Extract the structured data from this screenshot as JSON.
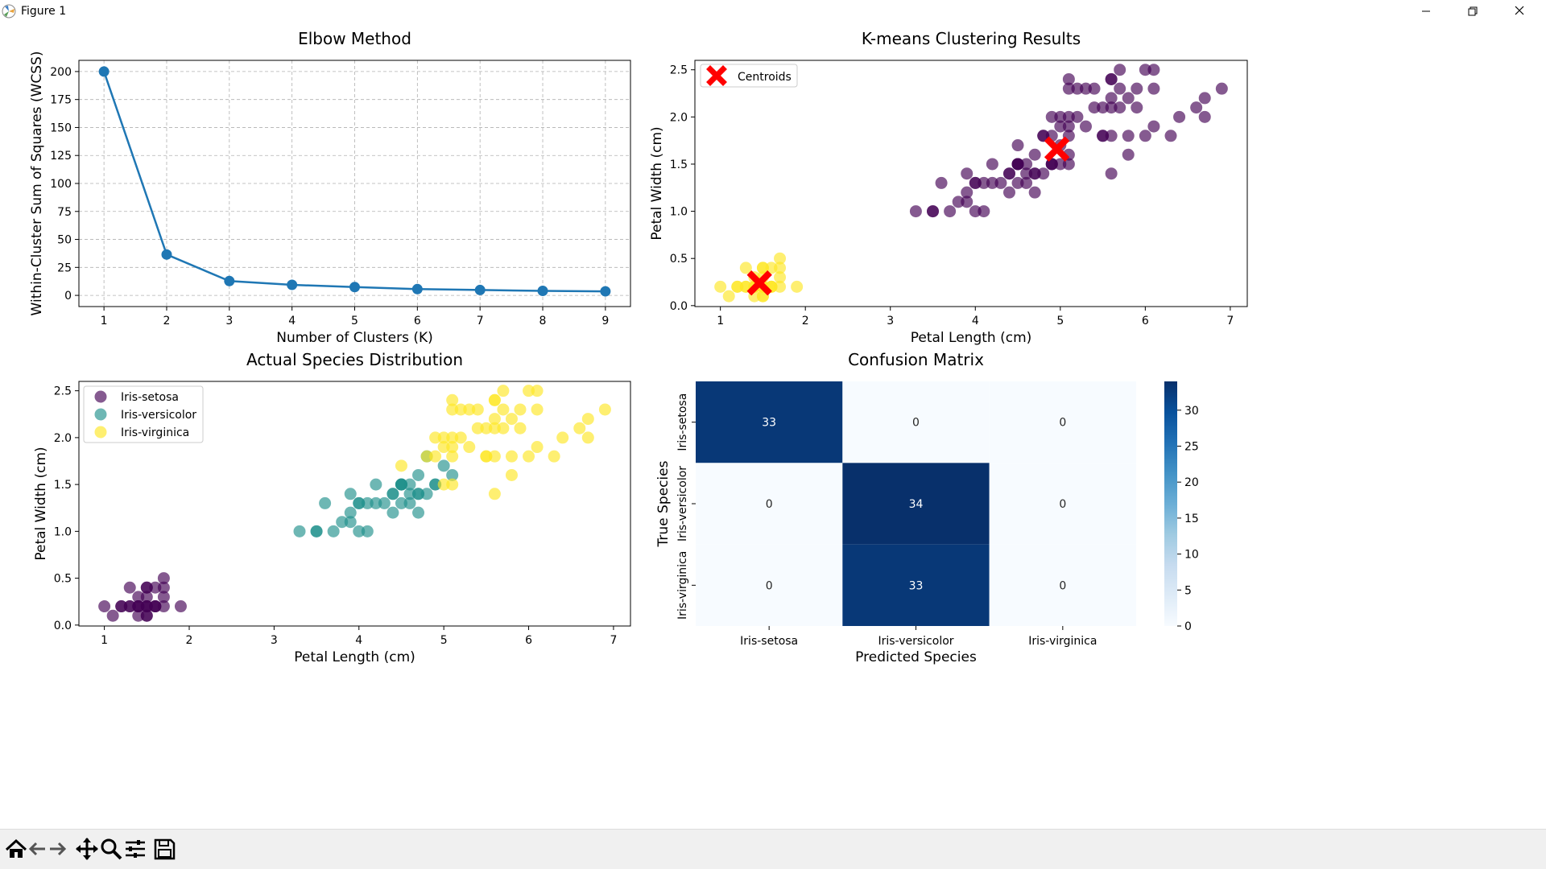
{
  "window": {
    "title": "Figure 1",
    "buttons": [
      "minimize",
      "restore",
      "close"
    ]
  },
  "toolbar": {
    "icons": [
      "home-icon",
      "back-arrow-icon",
      "forward-arrow-icon",
      "pan-icon",
      "zoom-icon",
      "configure-subplots-icon",
      "save-icon"
    ]
  },
  "colors": {
    "line_blue": "#1f77b4",
    "viridis_purple": "#440154",
    "viridis_teal": "#21918c",
    "viridis_yellow": "#fde725",
    "centroid_red": "#ff0000",
    "heat_dark": "#08306b",
    "heat_light": "#f7fbff"
  },
  "chart_data": [
    {
      "type": "line",
      "title": "Elbow Method",
      "xlabel": "Number of Clusters (K)",
      "ylabel": "Within-Cluster Sum of Squares (WCSS)",
      "x": [
        1,
        2,
        3,
        4,
        5,
        6,
        7,
        8,
        9
      ],
      "y": [
        200,
        36.5,
        12.8,
        9.4,
        7.4,
        5.6,
        4.8,
        4.0,
        3.6
      ],
      "xticks": [
        "1",
        "2",
        "3",
        "4",
        "5",
        "6",
        "7",
        "8",
        "9"
      ],
      "yticks": [
        "0",
        "25",
        "50",
        "75",
        "100",
        "125",
        "150",
        "175",
        "200"
      ],
      "xlim": [
        0.6,
        9.4
      ],
      "ylim": [
        -10,
        210
      ],
      "grid": true,
      "color": "#1f77b4"
    },
    {
      "type": "scatter",
      "title": "K-means Clustering Results",
      "xlabel": "Petal Length (cm)",
      "ylabel": "Petal Width (cm)",
      "xticks": [
        "1",
        "2",
        "3",
        "4",
        "5",
        "6",
        "7"
      ],
      "yticks": [
        "0.0",
        "0.5",
        "1.0",
        "1.5",
        "2.0",
        "2.5"
      ],
      "xlim": [
        0.7,
        7.2
      ],
      "ylim": [
        -0.01,
        2.6
      ],
      "legend": {
        "position": "top-left",
        "entries": [
          "Centroids"
        ]
      },
      "clusters": [
        {
          "color": "#fde725",
          "points": [
            [
              1.4,
              0.2
            ],
            [
              1.3,
              0.2
            ],
            [
              1.5,
              0.2
            ],
            [
              1.4,
              0.2
            ],
            [
              1.7,
              0.4
            ],
            [
              1.4,
              0.3
            ],
            [
              1.5,
              0.2
            ],
            [
              1.5,
              0.1
            ],
            [
              1.5,
              0.2
            ],
            [
              1.6,
              0.2
            ],
            [
              1.4,
              0.1
            ],
            [
              1.1,
              0.1
            ],
            [
              1.2,
              0.2
            ],
            [
              1.5,
              0.4
            ],
            [
              1.3,
              0.4
            ],
            [
              1.7,
              0.3
            ],
            [
              1.5,
              0.3
            ],
            [
              1.7,
              0.2
            ],
            [
              1.5,
              0.4
            ],
            [
              1.0,
              0.2
            ],
            [
              1.7,
              0.5
            ],
            [
              1.9,
              0.2
            ],
            [
              1.6,
              0.2
            ],
            [
              1.6,
              0.4
            ],
            [
              1.4,
              0.2
            ],
            [
              1.6,
              0.2
            ],
            [
              1.5,
              0.1
            ],
            [
              1.3,
              0.2
            ],
            [
              1.2,
              0.2
            ]
          ]
        },
        {
          "color": "#440154",
          "points": [
            [
              4.7,
              1.4
            ],
            [
              4.5,
              1.5
            ],
            [
              4.9,
              1.5
            ],
            [
              4.0,
              1.3
            ],
            [
              4.6,
              1.5
            ],
            [
              4.5,
              1.3
            ],
            [
              4.7,
              1.6
            ],
            [
              3.3,
              1.0
            ],
            [
              4.6,
              1.3
            ],
            [
              3.9,
              1.4
            ],
            [
              3.5,
              1.0
            ],
            [
              4.2,
              1.5
            ],
            [
              4.0,
              1.0
            ],
            [
              4.7,
              1.4
            ],
            [
              3.6,
              1.3
            ],
            [
              4.4,
              1.4
            ],
            [
              4.1,
              1.0
            ],
            [
              4.5,
              1.5
            ],
            [
              3.9,
              1.1
            ],
            [
              4.8,
              1.8
            ],
            [
              4.0,
              1.3
            ],
            [
              4.9,
              1.5
            ],
            [
              4.7,
              1.2
            ],
            [
              4.3,
              1.3
            ],
            [
              4.4,
              1.4
            ],
            [
              4.8,
              1.4
            ],
            [
              5.0,
              1.7
            ],
            [
              4.5,
              1.5
            ],
            [
              3.5,
              1.0
            ],
            [
              3.8,
              1.1
            ],
            [
              3.7,
              1.0
            ],
            [
              3.9,
              1.2
            ],
            [
              5.1,
              1.6
            ],
            [
              4.5,
              1.5
            ],
            [
              6.0,
              2.5
            ],
            [
              5.1,
              1.9
            ],
            [
              5.9,
              2.1
            ],
            [
              5.6,
              1.8
            ],
            [
              5.8,
              2.2
            ],
            [
              6.6,
              2.1
            ],
            [
              4.5,
              1.7
            ],
            [
              6.3,
              1.8
            ],
            [
              5.8,
              1.8
            ],
            [
              6.1,
              2.5
            ],
            [
              5.1,
              2.0
            ],
            [
              5.3,
              1.9
            ],
            [
              5.5,
              2.1
            ],
            [
              5.0,
              2.0
            ],
            [
              5.1,
              2.4
            ],
            [
              5.3,
              2.3
            ],
            [
              5.5,
              1.8
            ],
            [
              6.7,
              2.2
            ],
            [
              6.9,
              2.3
            ],
            [
              5.0,
              1.5
            ],
            [
              5.7,
              2.3
            ],
            [
              4.9,
              2.0
            ],
            [
              6.7,
              2.0
            ],
            [
              4.9,
              1.8
            ],
            [
              5.7,
              2.1
            ],
            [
              6.0,
              1.8
            ],
            [
              4.8,
              1.8
            ],
            [
              5.6,
              2.1
            ],
            [
              5.8,
              1.6
            ],
            [
              6.1,
              1.9
            ],
            [
              6.4,
              2.0
            ],
            [
              5.6,
              2.2
            ],
            [
              5.1,
              1.5
            ],
            [
              5.6,
              1.4
            ],
            [
              6.1,
              2.3
            ],
            [
              5.6,
              2.4
            ],
            [
              5.5,
              1.8
            ],
            [
              5.4,
              2.1
            ],
            [
              5.6,
              2.4
            ],
            [
              5.1,
              2.3
            ],
            [
              5.9,
              2.3
            ],
            [
              5.7,
              2.5
            ],
            [
              5.2,
              2.3
            ],
            [
              5.0,
              1.9
            ],
            [
              5.2,
              2.0
            ],
            [
              5.4,
              2.3
            ],
            [
              5.1,
              1.8
            ],
            [
              4.9,
              1.5
            ],
            [
              4.2,
              1.3
            ],
            [
              4.1,
              1.3
            ],
            [
              4.4,
              1.2
            ],
            [
              4.6,
              1.4
            ]
          ]
        }
      ],
      "centroids": [
        [
          1.46,
          0.24
        ],
        [
          4.96,
          1.66
        ]
      ],
      "centroid_color": "#ff0000"
    },
    {
      "type": "scatter",
      "title": "Actual Species Distribution",
      "xlabel": "Petal Length (cm)",
      "ylabel": "Petal Width (cm)",
      "xticks": [
        "1",
        "2",
        "3",
        "4",
        "5",
        "6",
        "7"
      ],
      "yticks": [
        "0.0",
        "0.5",
        "1.0",
        "1.5",
        "2.0",
        "2.5"
      ],
      "xlim": [
        0.7,
        7.2
      ],
      "ylim": [
        -0.01,
        2.6
      ],
      "legend": {
        "position": "top-left",
        "entries": [
          "Iris-setosa",
          "Iris-versicolor",
          "Iris-virginica"
        ]
      },
      "series": [
        {
          "name": "Iris-setosa",
          "color": "#440154",
          "points": [
            [
              1.4,
              0.2
            ],
            [
              1.3,
              0.2
            ],
            [
              1.5,
              0.2
            ],
            [
              1.4,
              0.2
            ],
            [
              1.7,
              0.4
            ],
            [
              1.4,
              0.3
            ],
            [
              1.5,
              0.2
            ],
            [
              1.5,
              0.1
            ],
            [
              1.5,
              0.2
            ],
            [
              1.6,
              0.2
            ],
            [
              1.4,
              0.1
            ],
            [
              1.1,
              0.1
            ],
            [
              1.2,
              0.2
            ],
            [
              1.5,
              0.4
            ],
            [
              1.3,
              0.4
            ],
            [
              1.7,
              0.3
            ],
            [
              1.5,
              0.3
            ],
            [
              1.7,
              0.2
            ],
            [
              1.5,
              0.4
            ],
            [
              1.0,
              0.2
            ],
            [
              1.7,
              0.5
            ],
            [
              1.9,
              0.2
            ],
            [
              1.6,
              0.2
            ],
            [
              1.6,
              0.4
            ],
            [
              1.4,
              0.2
            ],
            [
              1.6,
              0.2
            ],
            [
              1.5,
              0.1
            ],
            [
              1.3,
              0.2
            ],
            [
              1.2,
              0.2
            ]
          ]
        },
        {
          "name": "Iris-versicolor",
          "color": "#21918c",
          "points": [
            [
              4.7,
              1.4
            ],
            [
              4.5,
              1.5
            ],
            [
              4.9,
              1.5
            ],
            [
              4.0,
              1.3
            ],
            [
              4.6,
              1.5
            ],
            [
              4.5,
              1.3
            ],
            [
              4.7,
              1.6
            ],
            [
              3.3,
              1.0
            ],
            [
              4.6,
              1.3
            ],
            [
              3.9,
              1.4
            ],
            [
              3.5,
              1.0
            ],
            [
              4.2,
              1.5
            ],
            [
              4.0,
              1.0
            ],
            [
              4.7,
              1.4
            ],
            [
              3.6,
              1.3
            ],
            [
              4.4,
              1.4
            ],
            [
              4.1,
              1.0
            ],
            [
              4.5,
              1.5
            ],
            [
              3.9,
              1.1
            ],
            [
              4.8,
              1.8
            ],
            [
              4.0,
              1.3
            ],
            [
              4.9,
              1.5
            ],
            [
              4.7,
              1.2
            ],
            [
              4.3,
              1.3
            ],
            [
              4.4,
              1.4
            ],
            [
              4.8,
              1.4
            ],
            [
              5.0,
              1.7
            ],
            [
              4.5,
              1.5
            ],
            [
              3.5,
              1.0
            ],
            [
              3.8,
              1.1
            ],
            [
              3.7,
              1.0
            ],
            [
              3.9,
              1.2
            ],
            [
              5.1,
              1.6
            ],
            [
              4.5,
              1.5
            ],
            [
              4.2,
              1.3
            ],
            [
              4.1,
              1.3
            ],
            [
              4.4,
              1.2
            ],
            [
              4.6,
              1.4
            ]
          ]
        },
        {
          "name": "Iris-virginica",
          "color": "#fde725",
          "points": [
            [
              6.0,
              2.5
            ],
            [
              5.1,
              1.9
            ],
            [
              5.9,
              2.1
            ],
            [
              5.6,
              1.8
            ],
            [
              5.8,
              2.2
            ],
            [
              6.6,
              2.1
            ],
            [
              4.5,
              1.7
            ],
            [
              6.3,
              1.8
            ],
            [
              5.8,
              1.8
            ],
            [
              6.1,
              2.5
            ],
            [
              5.1,
              2.0
            ],
            [
              5.3,
              1.9
            ],
            [
              5.5,
              2.1
            ],
            [
              5.0,
              2.0
            ],
            [
              5.1,
              2.4
            ],
            [
              5.3,
              2.3
            ],
            [
              5.5,
              1.8
            ],
            [
              6.7,
              2.2
            ],
            [
              6.9,
              2.3
            ],
            [
              5.0,
              1.5
            ],
            [
              5.7,
              2.3
            ],
            [
              4.9,
              2.0
            ],
            [
              6.7,
              2.0
            ],
            [
              4.9,
              1.8
            ],
            [
              5.7,
              2.1
            ],
            [
              6.0,
              1.8
            ],
            [
              4.8,
              1.8
            ],
            [
              5.6,
              2.1
            ],
            [
              5.8,
              1.6
            ],
            [
              6.1,
              1.9
            ],
            [
              6.4,
              2.0
            ],
            [
              5.6,
              2.2
            ],
            [
              5.1,
              1.5
            ],
            [
              5.6,
              1.4
            ],
            [
              6.1,
              2.3
            ],
            [
              5.6,
              2.4
            ],
            [
              5.5,
              1.8
            ],
            [
              5.4,
              2.1
            ],
            [
              5.6,
              2.4
            ],
            [
              5.1,
              2.3
            ],
            [
              5.9,
              2.3
            ],
            [
              5.7,
              2.5
            ],
            [
              5.2,
              2.3
            ],
            [
              5.0,
              1.9
            ],
            [
              5.2,
              2.0
            ],
            [
              5.4,
              2.3
            ],
            [
              5.1,
              1.8
            ]
          ]
        }
      ]
    },
    {
      "type": "heatmap",
      "title": "Confusion Matrix",
      "xlabel": "Predicted Species",
      "ylabel": "True Species",
      "x_categories": [
        "Iris-setosa",
        "Iris-versicolor",
        "Iris-virginica"
      ],
      "y_categories": [
        "Iris-setosa",
        "Iris-versicolor",
        "Iris-virginica"
      ],
      "values": [
        [
          33,
          0,
          0
        ],
        [
          0,
          34,
          0
        ],
        [
          0,
          33,
          0
        ]
      ],
      "colorbar": {
        "min": 0,
        "max": 34,
        "ticks": [
          "0",
          "5",
          "10",
          "15",
          "20",
          "25",
          "30"
        ]
      },
      "colormap": "Blues"
    }
  ]
}
